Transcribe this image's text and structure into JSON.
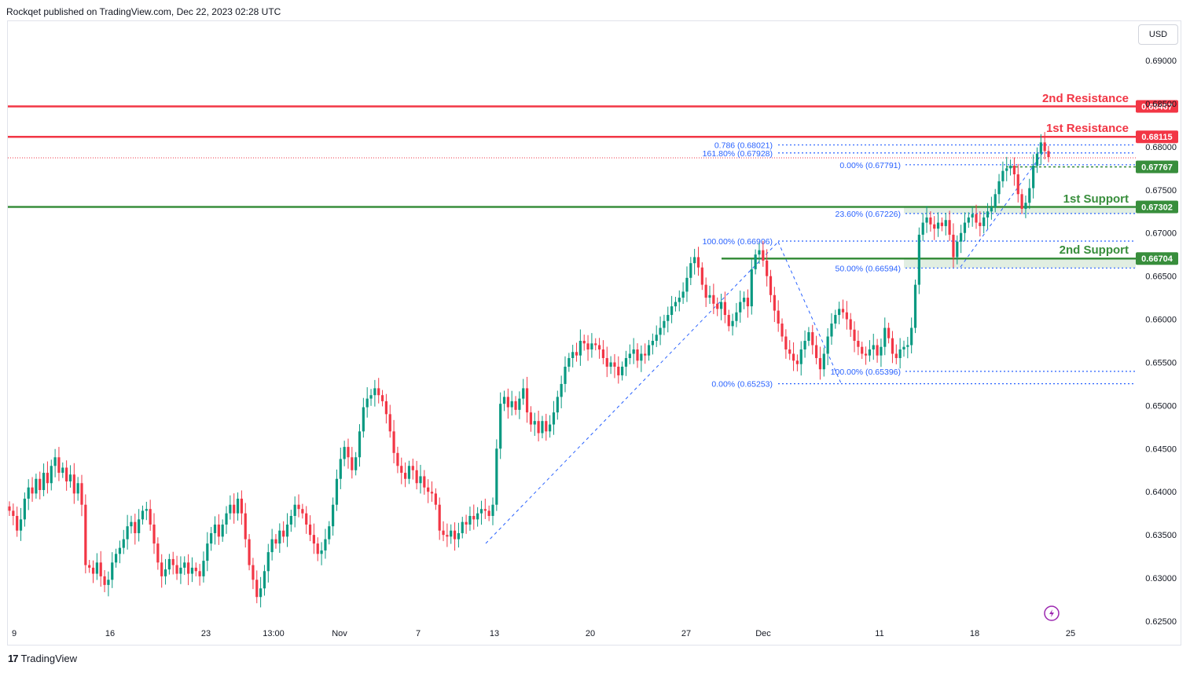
{
  "header": {
    "published": "Rockqet published on TradingView.com, Dec 22, 2023 02:28 UTC"
  },
  "currency_button": "USD",
  "footer": {
    "brand": "TradingView"
  },
  "colors": {
    "up": "#089981",
    "down": "#f23645",
    "resistance": "#f23645",
    "support": "#388e3c",
    "fib": "#2962ff",
    "fib_text": "#2962ff"
  },
  "chart_data": {
    "type": "candlestick",
    "symbol_currency": "USD",
    "ylim": [
      0.6245,
      0.6935
    ],
    "y_ticks": [
      "0.62500",
      "0.63000",
      "0.63500",
      "0.64000",
      "0.64500",
      "0.65000",
      "0.65500",
      "0.66000",
      "0.66500",
      "0.67000",
      "0.67500",
      "0.68000",
      "0.68500",
      "0.69000"
    ],
    "x_ticks": [
      "9",
      "16",
      "23",
      "13:00",
      "Nov",
      "7",
      "13",
      "20",
      "27",
      "Dec",
      "11",
      "18",
      "25"
    ],
    "levels": [
      {
        "name": "2nd Resistance",
        "value": "0.68467",
        "kind": "resistance"
      },
      {
        "name": "1st Resistance",
        "value": "0.68115",
        "kind": "resistance"
      },
      {
        "name": "1st Support",
        "value": "0.67302",
        "kind": "support"
      },
      {
        "name": "2nd Support",
        "value": "0.66704",
        "kind": "support"
      }
    ],
    "current_price": "0.67767",
    "fib_labels": [
      {
        "text": "0.786 (0.68021)",
        "price": 0.68021
      },
      {
        "text": "161.80% (0.67928)",
        "price": 0.67928
      },
      {
        "text": "0.00% (0.67791)",
        "price": 0.67791
      },
      {
        "text": "23.60% (0.67226)",
        "price": 0.67226
      },
      {
        "text": "100.00% (0.66906)",
        "price": 0.66906
      },
      {
        "text": "50.00% (0.66594)",
        "price": 0.66594
      },
      {
        "text": "100.00% (0.65396)",
        "price": 0.65396
      },
      {
        "text": "0.00% (0.65253)",
        "price": 0.65253
      }
    ],
    "path_points": [
      [
        0.6335,
        0.6335
      ],
      [
        0.639,
        0.639
      ]
    ],
    "closes": [
      0.6378,
      0.6372,
      0.6355,
      0.6368,
      0.6392,
      0.6405,
      0.6398,
      0.6415,
      0.6402,
      0.6422,
      0.641,
      0.643,
      0.644,
      0.6422,
      0.6428,
      0.6412,
      0.642,
      0.6398,
      0.641,
      0.6385,
      0.6315,
      0.6312,
      0.6305,
      0.6318,
      0.6302,
      0.6292,
      0.6298,
      0.6318,
      0.6328,
      0.6335,
      0.6345,
      0.636,
      0.6365,
      0.6352,
      0.6368,
      0.6378,
      0.638,
      0.6362,
      0.634,
      0.6318,
      0.6302,
      0.631,
      0.6322,
      0.6315,
      0.6305,
      0.6312,
      0.6318,
      0.6305,
      0.6312,
      0.6308,
      0.6302,
      0.632,
      0.634,
      0.6352,
      0.6362,
      0.6348,
      0.6362,
      0.6375,
      0.6385,
      0.6375,
      0.6392,
      0.6375,
      0.6345,
      0.6315,
      0.6298,
      0.6278,
      0.6288,
      0.6308,
      0.633,
      0.6345,
      0.634,
      0.6355,
      0.6348,
      0.6362,
      0.6372,
      0.6385,
      0.638,
      0.6375,
      0.6362,
      0.635,
      0.634,
      0.6328,
      0.6332,
      0.6345,
      0.636,
      0.6385,
      0.6415,
      0.6438,
      0.6452,
      0.644,
      0.6425,
      0.644,
      0.647,
      0.6498,
      0.6508,
      0.6512,
      0.652,
      0.6512,
      0.6505,
      0.649,
      0.647,
      0.6445,
      0.643,
      0.6422,
      0.6415,
      0.643,
      0.6425,
      0.641,
      0.6418,
      0.6405,
      0.64,
      0.6398,
      0.6385,
      0.6355,
      0.635,
      0.6348,
      0.6355,
      0.6345,
      0.6352,
      0.6365,
      0.6362,
      0.6372,
      0.6368,
      0.6375,
      0.638,
      0.6378,
      0.6372,
      0.6385,
      0.645,
      0.6502,
      0.651,
      0.6498,
      0.6505,
      0.6495,
      0.6508,
      0.652,
      0.6492,
      0.6478,
      0.6482,
      0.6468,
      0.6482,
      0.647,
      0.6478,
      0.6492,
      0.651,
      0.6525,
      0.6545,
      0.6555,
      0.6562,
      0.6558,
      0.6575,
      0.6572,
      0.6565,
      0.6572,
      0.657,
      0.6565,
      0.6555,
      0.6545,
      0.655,
      0.6545,
      0.6535,
      0.6545,
      0.6555,
      0.656,
      0.6565,
      0.6552,
      0.656,
      0.6558,
      0.657,
      0.6575,
      0.6582,
      0.659,
      0.6598,
      0.6605,
      0.6615,
      0.662,
      0.6625,
      0.6632,
      0.6648,
      0.6665,
      0.6672,
      0.666,
      0.664,
      0.6625,
      0.6628,
      0.6618,
      0.6612,
      0.662,
      0.6605,
      0.6592,
      0.6598,
      0.6608,
      0.662,
      0.6625,
      0.6615,
      0.6658,
      0.6675,
      0.668,
      0.6668,
      0.665,
      0.6628,
      0.661,
      0.6595,
      0.658,
      0.6565,
      0.656,
      0.6552,
      0.6548,
      0.6565,
      0.6575,
      0.6585,
      0.657,
      0.6555,
      0.6542,
      0.656,
      0.658,
      0.6595,
      0.6605,
      0.6612,
      0.6608,
      0.66,
      0.6588,
      0.6575,
      0.6568,
      0.656,
      0.6558,
      0.6565,
      0.657,
      0.6558,
      0.6568,
      0.659,
      0.6578,
      0.656,
      0.6555,
      0.6565,
      0.6568,
      0.657,
      0.659,
      0.664,
      0.6698,
      0.6712,
      0.6718,
      0.671,
      0.6705,
      0.6712,
      0.6708,
      0.6715,
      0.6698,
      0.6672,
      0.669,
      0.67,
      0.6712,
      0.6718,
      0.6722,
      0.6712,
      0.6708,
      0.6718,
      0.6725,
      0.673,
      0.6745,
      0.676,
      0.6772,
      0.6775,
      0.6778,
      0.6768,
      0.6745,
      0.6728,
      0.6735,
      0.6752,
      0.6778,
      0.6792,
      0.6805,
      0.6795,
      0.6788
    ]
  }
}
